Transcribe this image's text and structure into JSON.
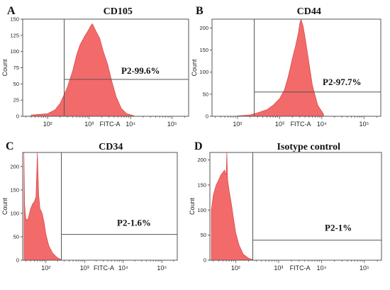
{
  "chart_data": [
    {
      "type": "histogram",
      "letter": "A",
      "title": "CD105",
      "xlabel": "FITC-A",
      "ylabel": "Count",
      "x_scale": "log",
      "xlim": [
        25,
        250000
      ],
      "ylim": [
        0,
        150
      ],
      "y_ticks": [
        0,
        25,
        50,
        75,
        100,
        125,
        150
      ],
      "x_ticks": [
        {
          "value": 100,
          "label": "10²"
        },
        {
          "value": 1000,
          "label": "10³"
        },
        {
          "value": 10000,
          "label": "10⁴"
        },
        {
          "value": 100000,
          "label": "10⁵"
        }
      ],
      "gate_x": 250,
      "gate_y": 57,
      "gate_label": "P2-99.6%",
      "histogram": {
        "x": [
          40,
          100,
          150,
          200,
          300,
          400,
          500,
          600,
          700,
          800,
          900,
          1000,
          1100,
          1200,
          1300,
          1500,
          1800,
          2200,
          2800,
          3500,
          4500,
          6000,
          8000,
          12000
        ],
        "y": [
          2,
          4,
          10,
          20,
          45,
          70,
          95,
          110,
          118,
          125,
          130,
          135,
          140,
          143,
          138,
          130,
          120,
          100,
          80,
          55,
          30,
          12,
          4,
          1
        ]
      }
    },
    {
      "type": "histogram",
      "letter": "B",
      "title": "CD44",
      "xlabel": "FITC-A",
      "ylabel": "Count",
      "x_scale": "log",
      "xlim": [
        25,
        250000
      ],
      "ylim": [
        0,
        220
      ],
      "y_ticks": [
        0,
        50,
        100,
        150,
        200
      ],
      "x_ticks": [
        {
          "value": 100,
          "label": "10²"
        },
        {
          "value": 1000,
          "label": "10³"
        },
        {
          "value": 10000,
          "label": "10⁴"
        },
        {
          "value": 100000,
          "label": "10⁵"
        }
      ],
      "gate_x": 250,
      "gate_y": 55,
      "gate_label": "P2-97.7%",
      "histogram": {
        "x": [
          100,
          200,
          300,
          500,
          700,
          1000,
          1300,
          1600,
          2000,
          2400,
          2800,
          3000,
          3200,
          3600,
          4000,
          4800,
          6000,
          8000,
          11000
        ],
        "y": [
          1,
          3,
          8,
          15,
          25,
          40,
          60,
          90,
          130,
          160,
          190,
          210,
          220,
          205,
          180,
          130,
          70,
          25,
          5
        ]
      }
    },
    {
      "type": "histogram",
      "letter": "C",
      "title": "CD34",
      "xlabel": "FITC-A",
      "ylabel": "Count",
      "x_scale": "log",
      "xlim": [
        25,
        250000
      ],
      "ylim": [
        0,
        230
      ],
      "y_ticks": [
        0,
        50,
        100,
        150,
        200
      ],
      "x_ticks": [
        {
          "value": 100,
          "label": "10²"
        },
        {
          "value": 1000,
          "label": "10³"
        },
        {
          "value": 10000,
          "label": "10⁴"
        },
        {
          "value": 100000,
          "label": "10⁵"
        }
      ],
      "gate_x": 250,
      "gate_y": 55,
      "gate_label": "P2-1.6%",
      "histogram": {
        "x": [
          27,
          28,
          30,
          32,
          35,
          40,
          45,
          50,
          55,
          60,
          65,
          70,
          80,
          90,
          100,
          120,
          150,
          200,
          250
        ],
        "y": [
          230,
          120,
          90,
          85,
          90,
          110,
          120,
          125,
          135,
          230,
          140,
          110,
          100,
          80,
          55,
          30,
          15,
          5,
          1
        ]
      }
    },
    {
      "type": "histogram",
      "letter": "D",
      "title": "Isotype control",
      "xlabel": "FITC-A",
      "ylabel": "Count",
      "x_scale": "log",
      "xlim": [
        25,
        250000
      ],
      "ylim": [
        0,
        215
      ],
      "y_ticks": [
        0,
        50,
        100,
        150,
        200
      ],
      "x_ticks": [
        {
          "value": 100,
          "label": "10²"
        },
        {
          "value": 1000,
          "label": "10³"
        },
        {
          "value": 10000,
          "label": "10⁴"
        },
        {
          "value": 100000,
          "label": "10⁵"
        }
      ],
      "gate_x": 250,
      "gate_y": 40,
      "gate_label": "P2-1%",
      "histogram": {
        "x": [
          27,
          30,
          35,
          40,
          45,
          50,
          55,
          60,
          62,
          65,
          70,
          80,
          90,
          100,
          120,
          150,
          200,
          250
        ],
        "y": [
          100,
          130,
          150,
          160,
          170,
          175,
          180,
          170,
          215,
          160,
          140,
          110,
          80,
          55,
          30,
          12,
          4,
          1
        ]
      }
    }
  ]
}
